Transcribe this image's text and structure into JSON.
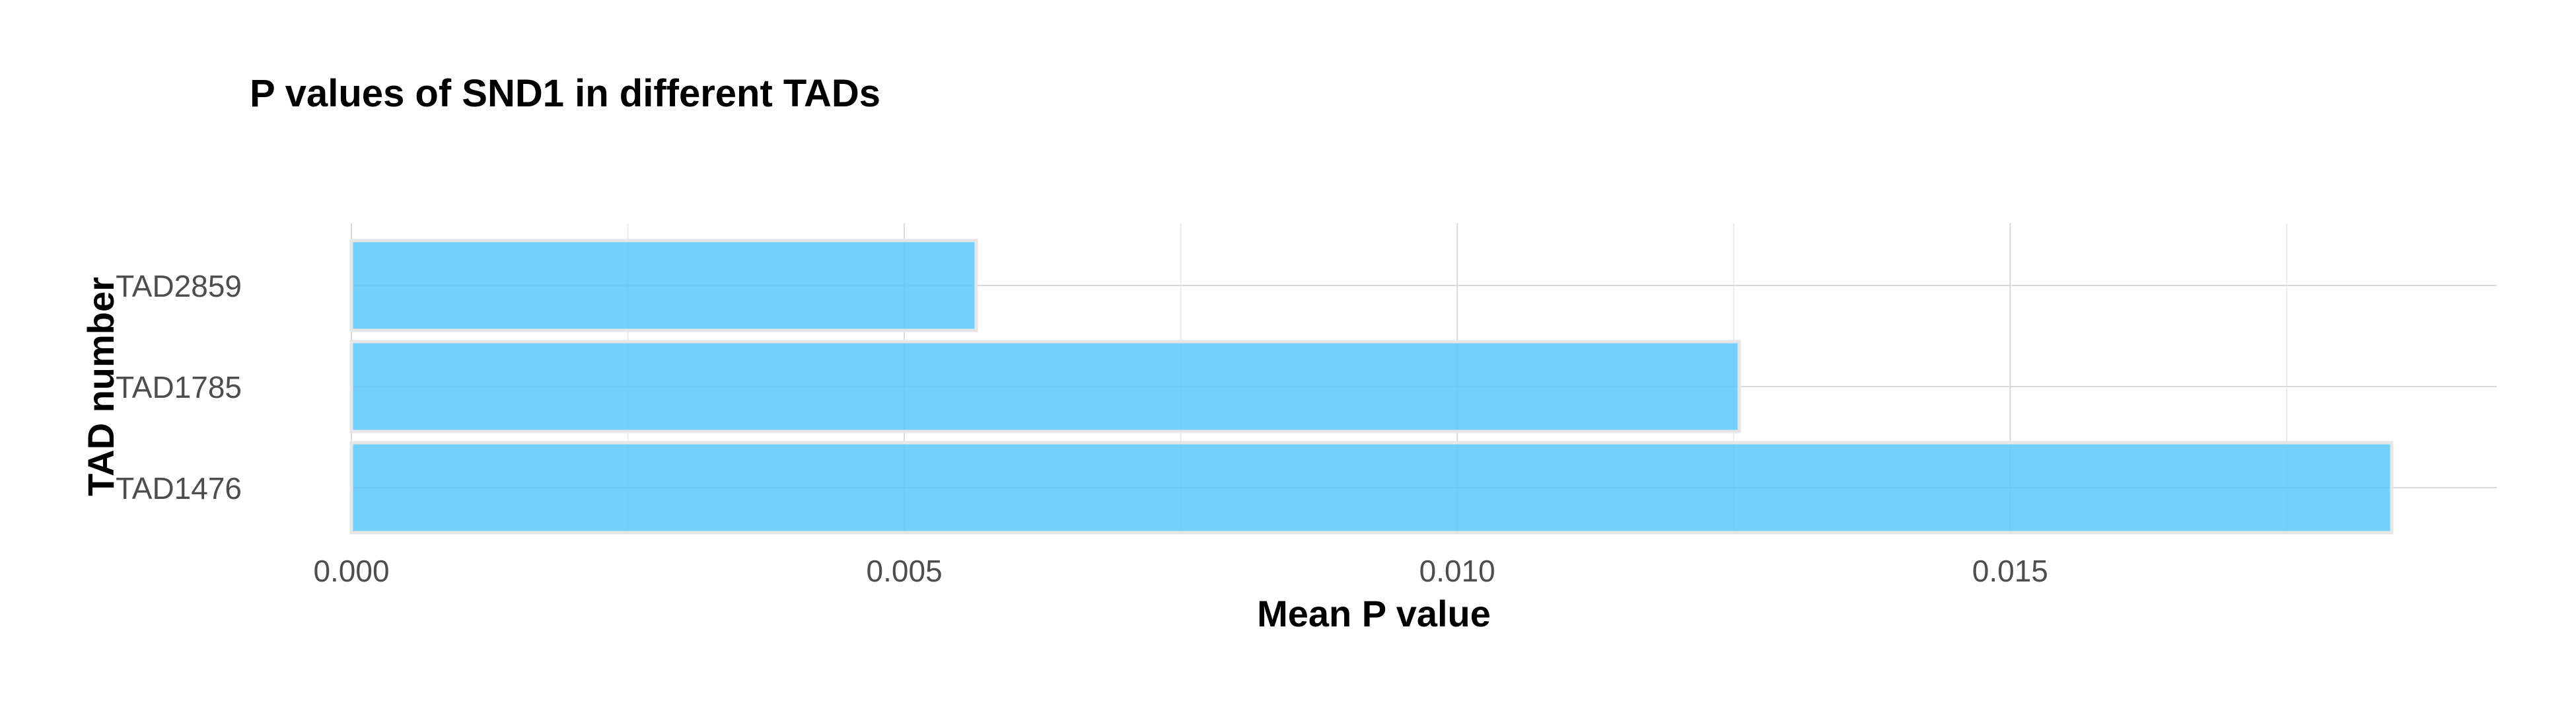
{
  "chart_data": {
    "type": "bar",
    "orientation": "horizontal",
    "title": "P values of SND1 in different TADs",
    "xlabel": "Mean P value",
    "ylabel": "TAD number",
    "categories": [
      "TAD2859",
      "TAD1785",
      "TAD1476"
    ],
    "values": [
      0.00565,
      0.01255,
      0.01845
    ],
    "xlim": [
      0,
      0.0194
    ],
    "xticks": [
      0.0,
      0.005,
      0.01,
      0.015
    ],
    "xtick_labels": [
      "0.000",
      "0.005",
      "0.010",
      "0.015"
    ],
    "grid": true,
    "legend": "none",
    "bar_color": "#5bc8fa"
  }
}
